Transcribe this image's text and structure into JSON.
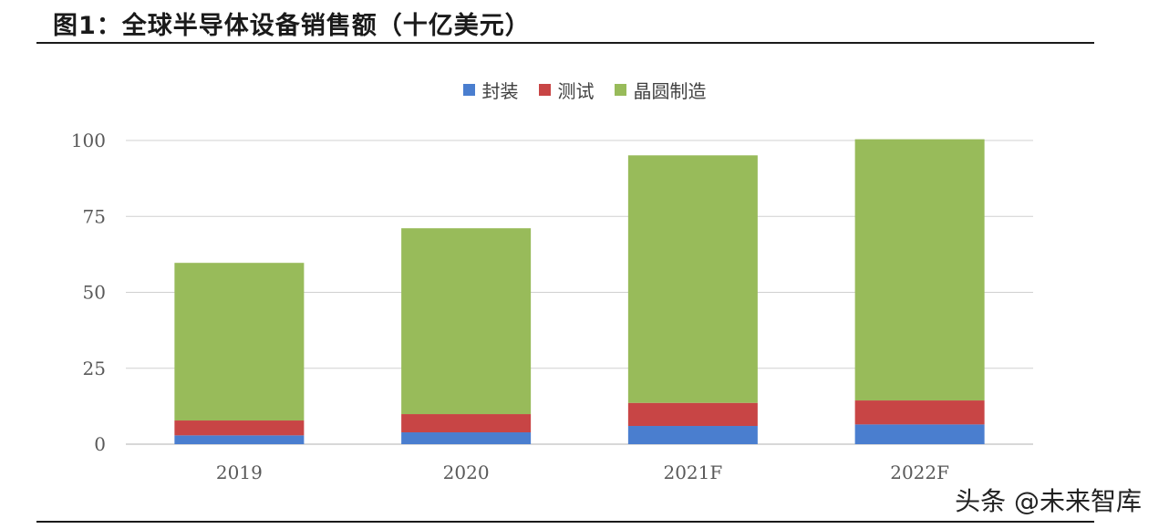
{
  "title": "图1：全球半导体设备销售额（十亿美元）",
  "watermark": "头条 @未来智库",
  "colors": {
    "packaging": "#4a7ecf",
    "testing": "#c84545",
    "wafer": "#98bb5a",
    "grid": "#d0d0d0",
    "axis": "#b0b0b0"
  },
  "chart_data": {
    "type": "bar",
    "stacked": true,
    "categories": [
      "2019",
      "2020",
      "2021F",
      "2022F"
    ],
    "series": [
      {
        "name": "封装",
        "values": [
          2.9,
          3.9,
          6.0,
          6.5
        ]
      },
      {
        "name": "测试",
        "values": [
          4.9,
          6.0,
          7.6,
          7.9
        ]
      },
      {
        "name": "晶圆制造",
        "values": [
          51.9,
          61.2,
          81.5,
          86.0
        ]
      }
    ],
    "yticks": [
      "0",
      "25",
      "50",
      "75",
      "100"
    ],
    "ylim": [
      0,
      100
    ],
    "grid": true,
    "legend": "top-center"
  }
}
